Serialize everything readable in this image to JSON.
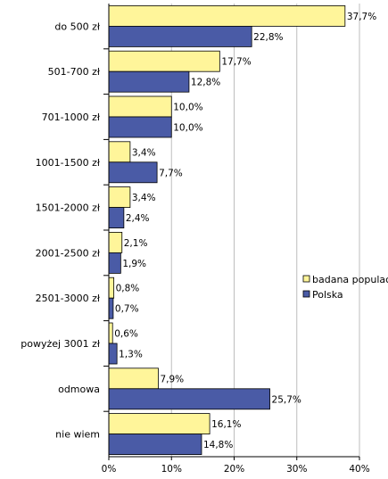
{
  "chart_data": {
    "type": "bar",
    "orientation": "horizontal",
    "title": "",
    "xlabel": "",
    "ylabel": "",
    "categories": [
      "do 500 zł",
      "501-700 zł",
      "701-1000 zł",
      "1001-1500 zł",
      "1501-2000 zł",
      "2001-2500 zł",
      "2501-3000 zł",
      "powyżej 3001 zł",
      "odmowa",
      "nie wiem"
    ],
    "series": [
      {
        "name": "badana populacja",
        "color": "#FFF59A",
        "values": [
          37.7,
          17.7,
          10.0,
          3.4,
          3.4,
          2.1,
          0.8,
          0.6,
          7.9,
          16.1
        ],
        "labels": [
          "37,7%",
          "17,7%",
          "10,0%",
          "3,4%",
          "3,4%",
          "2,1%",
          "0,8%",
          "0,6%",
          "7,9%",
          "16,1%"
        ]
      },
      {
        "name": "Polska",
        "color": "#4A5BA6",
        "values": [
          22.8,
          12.8,
          10.0,
          7.7,
          2.4,
          1.9,
          0.7,
          1.3,
          25.7,
          14.8
        ],
        "labels": [
          "22,8%",
          "12,8%",
          "10,0%",
          "7,7%",
          "2,4%",
          "1,9%",
          "0,7%",
          "1,3%",
          "25,7%",
          "14,8%"
        ]
      }
    ],
    "xlim": [
      0,
      40
    ],
    "xticks": [
      0,
      10,
      20,
      30,
      40
    ],
    "xtick_labels": [
      "0%",
      "10%",
      "20%",
      "30%",
      "40%"
    ],
    "grid": true,
    "legend_position": "right"
  },
  "colors": {
    "grid": "#BEBEBE",
    "axis": "#000000",
    "bar_outline": "#000000",
    "text": "#000000"
  }
}
